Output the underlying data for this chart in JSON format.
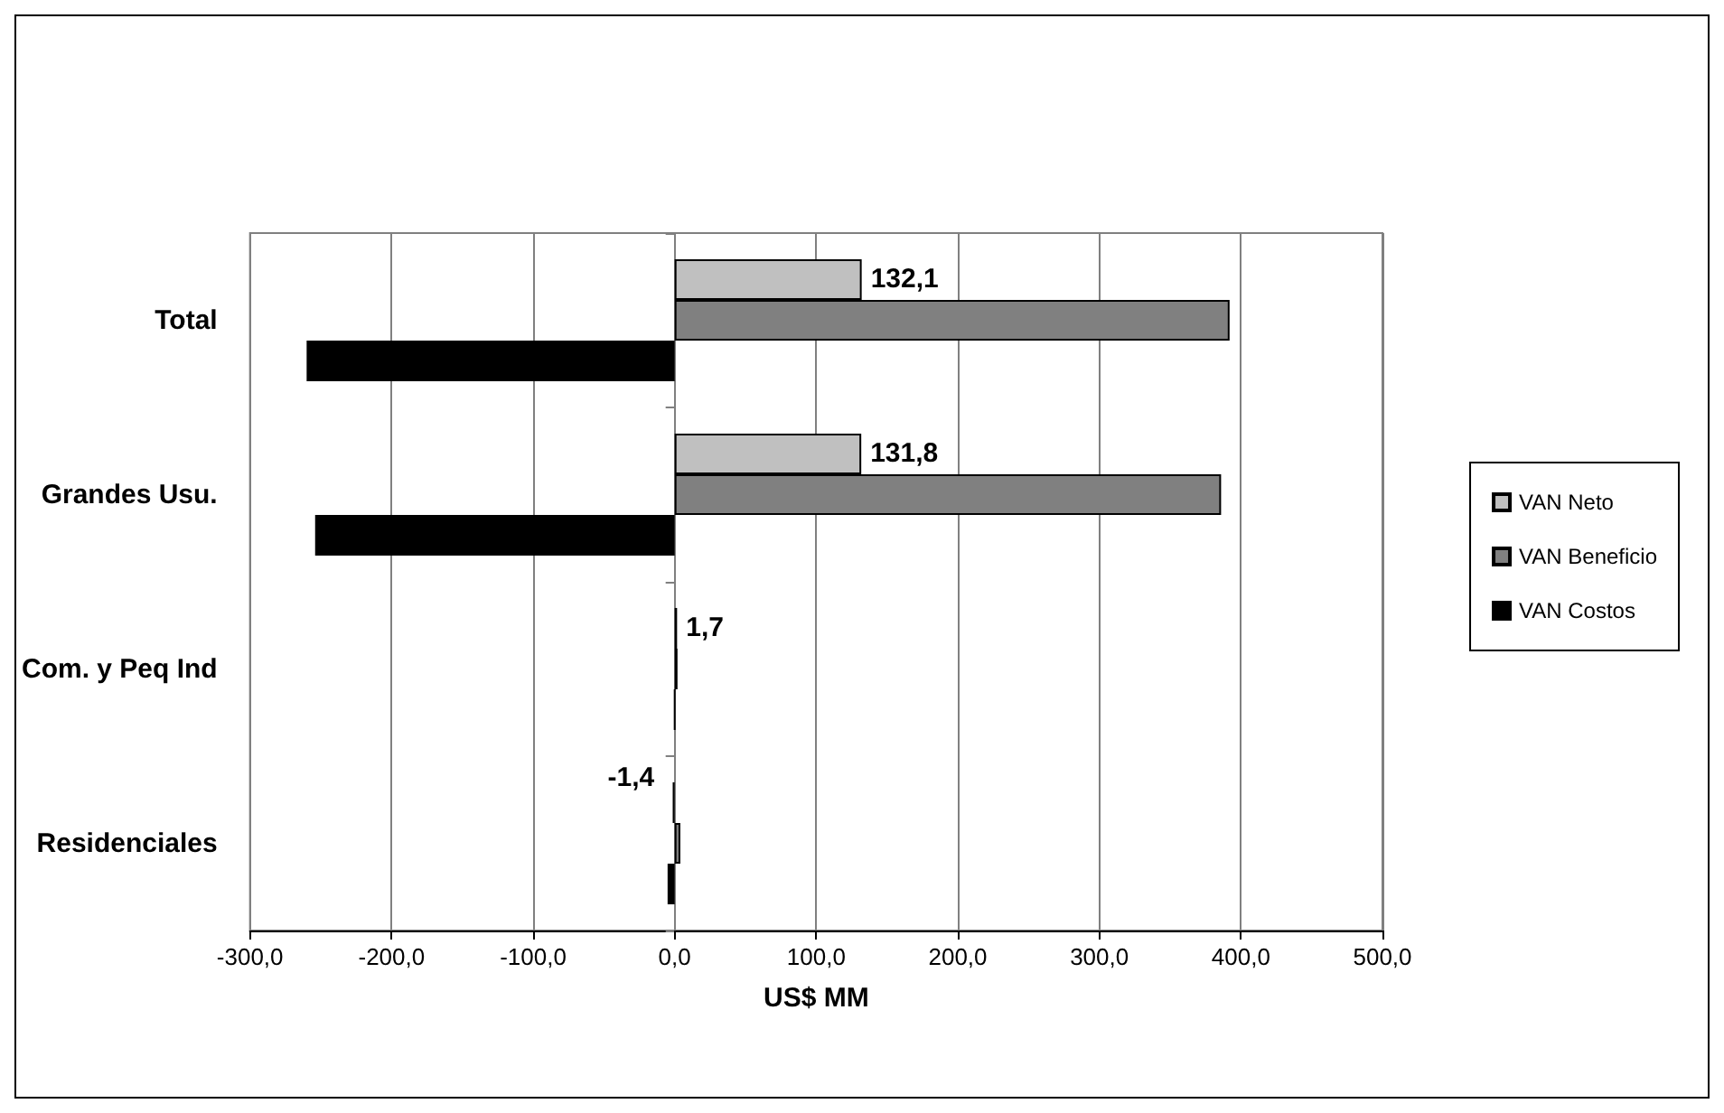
{
  "chart_data": {
    "type": "bar",
    "orientation": "horizontal",
    "xlabel": "US$ MM",
    "categories": [
      "Total",
      "Grandes Usu.",
      "Com. y Peq Ind",
      "Residenciales"
    ],
    "series": [
      {
        "name": "VAN Neto",
        "color": "#c0c0c0",
        "values": [
          132.1,
          131.8,
          1.7,
          -1.4
        ],
        "value_labels": [
          "132,1",
          "131,8",
          "1,7",
          "-1,4"
        ]
      },
      {
        "name": "VAN Beneficio",
        "color": "#808080",
        "values": [
          392,
          386,
          2,
          4
        ]
      },
      {
        "name": "VAN Costos",
        "color": "#000000",
        "values": [
          -260,
          -254,
          0,
          -5
        ]
      }
    ],
    "xlim": [
      -300,
      500
    ],
    "xticks": [
      {
        "value": -300,
        "label": "-300,0"
      },
      {
        "value": -200,
        "label": "-200,0"
      },
      {
        "value": -100,
        "label": "-100,0"
      },
      {
        "value": 0,
        "label": "0,0"
      },
      {
        "value": 100,
        "label": "100,0"
      },
      {
        "value": 200,
        "label": "200,0"
      },
      {
        "value": 300,
        "label": "300,0"
      },
      {
        "value": 400,
        "label": "400,0"
      },
      {
        "value": 500,
        "label": "500,0"
      }
    ],
    "grid": "x",
    "legend": "right"
  }
}
